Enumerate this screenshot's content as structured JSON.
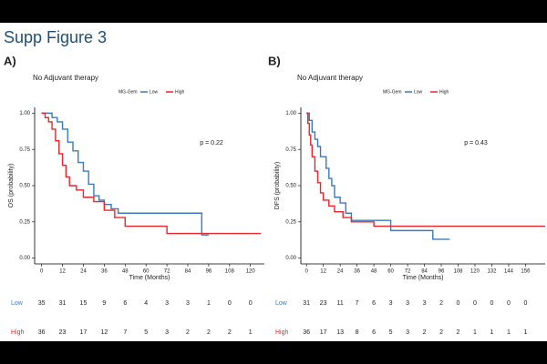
{
  "slide_title": "Supp Figure 3",
  "chart_data": [
    {
      "type": "step",
      "panel": "A)",
      "subtitle": "No Adjuvant therapy",
      "legend_title": "MG-Gem",
      "ylabel": "OS (probability)",
      "xlabel": "Time (Months)",
      "annotation": "p = 0.22",
      "xlim": [
        -4,
        128
      ],
      "xticks": [
        0,
        12,
        24,
        36,
        48,
        60,
        72,
        84,
        96,
        108,
        120
      ],
      "ylim": [
        -0.04,
        1.04
      ],
      "yticks": [
        {
          "value": 0,
          "label": "0.00"
        },
        {
          "value": 0.25,
          "label": "0.25"
        },
        {
          "value": 0.5,
          "label": "0.50"
        },
        {
          "value": 0.75,
          "label": "0.75"
        },
        {
          "value": 1,
          "label": "1.00"
        }
      ],
      "series": [
        {
          "name": "Low",
          "color": "#3a7bbf",
          "x": [
            0,
            6,
            9,
            12,
            15,
            18,
            21,
            24,
            27,
            30,
            33,
            36,
            40,
            44,
            92,
            96
          ],
          "values": [
            1,
            0.97,
            0.94,
            0.89,
            0.8,
            0.74,
            0.66,
            0.6,
            0.51,
            0.43,
            0.4,
            0.37,
            0.34,
            0.31,
            0.16,
            0.16
          ]
        },
        {
          "name": "High",
          "color": "#e8262b",
          "x": [
            0,
            2,
            4,
            6,
            8,
            10,
            12,
            14,
            16,
            20,
            24,
            30,
            36,
            42,
            48,
            72,
            126
          ],
          "values": [
            1,
            0.97,
            0.94,
            0.89,
            0.81,
            0.72,
            0.64,
            0.56,
            0.5,
            0.47,
            0.42,
            0.39,
            0.33,
            0.28,
            0.22,
            0.17,
            0.17
          ]
        }
      ],
      "risk_table": [
        {
          "name": "Low",
          "values": [
            35,
            31,
            15,
            9,
            6,
            4,
            3,
            3,
            1,
            0,
            0
          ]
        },
        {
          "name": "High",
          "values": [
            36,
            23,
            17,
            12,
            7,
            5,
            3,
            2,
            2,
            2,
            1
          ]
        }
      ]
    },
    {
      "type": "step",
      "panel": "B)",
      "subtitle": "No Adjuvant therapy",
      "legend_title": "MG-Gem",
      "ylabel": "DFS (probability)",
      "xlabel": "Time (Months)",
      "annotation": "p = 0.43",
      "xlim": [
        -4,
        170
      ],
      "xticks": [
        0,
        12,
        24,
        36,
        48,
        60,
        72,
        84,
        96,
        108,
        120,
        132,
        144,
        156
      ],
      "ylim": [
        -0.04,
        1.04
      ],
      "yticks": [
        {
          "value": 0,
          "label": "0.00"
        },
        {
          "value": 0.25,
          "label": "0.25"
        },
        {
          "value": 0.5,
          "label": "0.50"
        },
        {
          "value": 0.75,
          "label": "0.75"
        },
        {
          "value": 1,
          "label": "1.00"
        }
      ],
      "series": [
        {
          "name": "Low",
          "color": "#3a7bbf",
          "x": [
            0,
            2,
            4,
            6,
            8,
            10,
            14,
            16,
            18,
            20,
            24,
            28,
            32,
            60,
            90,
            102
          ],
          "values": [
            1,
            0.95,
            0.87,
            0.82,
            0.77,
            0.7,
            0.62,
            0.55,
            0.5,
            0.42,
            0.38,
            0.31,
            0.26,
            0.19,
            0.13,
            0.13
          ]
        },
        {
          "name": "High",
          "color": "#e8262b",
          "x": [
            0,
            1,
            2,
            3,
            4,
            6,
            8,
            10,
            12,
            16,
            20,
            26,
            32,
            48,
            170
          ],
          "values": [
            1,
            0.93,
            0.85,
            0.78,
            0.7,
            0.6,
            0.52,
            0.45,
            0.4,
            0.36,
            0.32,
            0.28,
            0.25,
            0.22,
            0.22
          ]
        }
      ],
      "risk_table": [
        {
          "name": "Low",
          "values": [
            31,
            23,
            11,
            7,
            6,
            3,
            3,
            3,
            2,
            0,
            0,
            0,
            0,
            0
          ]
        },
        {
          "name": "High",
          "values": [
            36,
            17,
            13,
            8,
            6,
            5,
            3,
            2,
            2,
            2,
            1,
            1,
            1,
            1
          ]
        }
      ]
    }
  ]
}
